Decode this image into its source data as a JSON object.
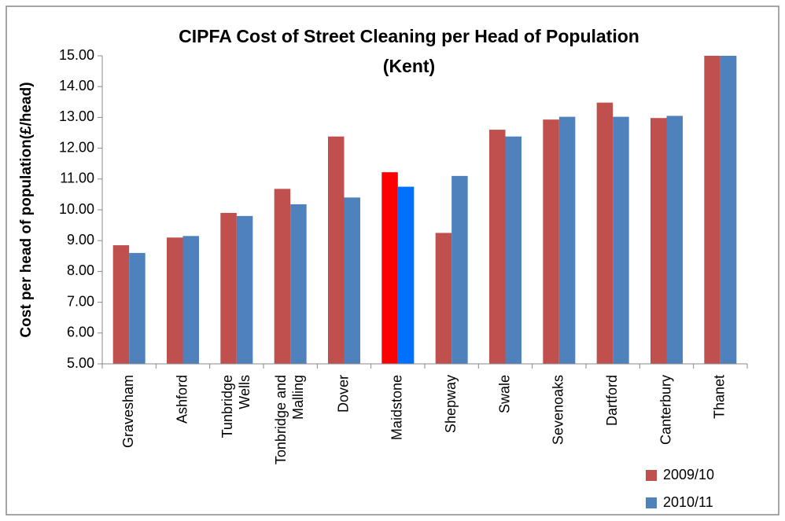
{
  "chart_data": {
    "type": "bar",
    "title": "CIPFA Cost of Street Cleaning per Head of Population\n(Kent)",
    "y_label": "Cost per head of population(£/head)",
    "categories": [
      "Gravesham",
      "Ashford",
      "Tunbridge\nWells",
      "Tonbridge and\nMalling",
      "Dover",
      "Maidstone",
      "Shepway",
      "Swale",
      "Sevenoaks",
      "Dartford",
      "Canterbury",
      "Thanet"
    ],
    "series": [
      {
        "name": "2009/10",
        "color": "#c0504d",
        "point_colors": [
          "#c0504d",
          "#c0504d",
          "#c0504d",
          "#c0504d",
          "#c0504d",
          "#ff0000",
          "#c0504d",
          "#c0504d",
          "#c0504d",
          "#c0504d",
          "#c0504d",
          "#c0504d"
        ],
        "values": [
          8.85,
          9.1,
          9.9,
          10.68,
          12.38,
          11.22,
          9.25,
          12.6,
          12.93,
          13.48,
          12.98,
          15
        ]
      },
      {
        "name": "2010/11",
        "color": "#4f81bd",
        "point_colors": [
          "#4f81bd",
          "#4f81bd",
          "#4f81bd",
          "#4f81bd",
          "#4f81bd",
          "#0070ff",
          "#4f81bd",
          "#4f81bd",
          "#4f81bd",
          "#4f81bd",
          "#4f81bd",
          "#4f81bd"
        ],
        "values": [
          8.6,
          9.15,
          9.8,
          10.18,
          10.4,
          10.75,
          11.1,
          12.38,
          13.02,
          13.02,
          13.05,
          15
        ]
      }
    ],
    "ylim": [
      5,
      15
    ],
    "yticks": [
      {
        "value": 5,
        "label": "5.00"
      },
      {
        "value": 6,
        "label": "6.00"
      },
      {
        "value": 7,
        "label": "7.00"
      },
      {
        "value": 8,
        "label": "8.00"
      },
      {
        "value": 9,
        "label": "9.00"
      },
      {
        "value": 10,
        "label": "10.00"
      },
      {
        "value": 11,
        "label": "11.00"
      },
      {
        "value": 12,
        "label": "12.00"
      },
      {
        "value": 13,
        "label": "13.00"
      },
      {
        "value": 14,
        "label": "14.00"
      },
      {
        "value": 15,
        "label": "15.00"
      }
    ],
    "grid": false,
    "legend": "bottom-right"
  }
}
